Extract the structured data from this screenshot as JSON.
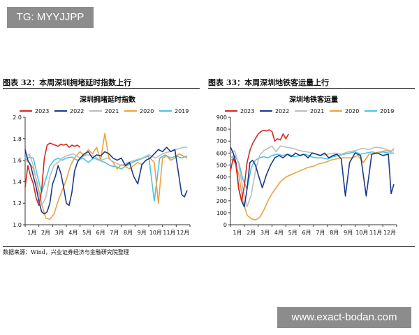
{
  "watermarks": {
    "top": "TG: MYYJJPP",
    "bottom": "www.exact-bodan.com"
  },
  "figures": [
    {
      "title": "图表 32：本周深圳拥堵延时指数上行"
    },
    {
      "title": "图表 33：本周深圳地铁客运量上行"
    }
  ],
  "source": "数据来源：Wind，兴业证券经济与金融研究院整理",
  "colors": {
    "2023": "#d6271f",
    "2022": "#1a3a8a",
    "2021": "#bdbdbd",
    "2020": "#f0a040",
    "2019": "#4cc3e6"
  },
  "chart_data": [
    {
      "type": "line",
      "title": "深圳拥堵延时指数",
      "x_categories": [
        "1月",
        "2月",
        "3月",
        "4月",
        "5月",
        "6月",
        "7月",
        "8月",
        "9月",
        "10月",
        "11月",
        "12月"
      ],
      "ylim": [
        1.0,
        2.0
      ],
      "yticks": [
        "1.0",
        "1.2",
        "1.4",
        "1.6",
        "1.8",
        "2.0"
      ],
      "grid": false,
      "legend_position": "top",
      "series": [
        {
          "name": "2023",
          "color": "#d6271f",
          "x": [
            0.0,
            0.2,
            0.4,
            0.6,
            0.8,
            1.0,
            1.2,
            1.4,
            1.6,
            1.8,
            2.0,
            2.2,
            2.4,
            2.6,
            2.8,
            3.0,
            3.2,
            3.4,
            3.6,
            3.8,
            4.0
          ],
          "y": [
            1.35,
            1.55,
            1.45,
            1.38,
            1.25,
            1.18,
            1.32,
            1.62,
            1.74,
            1.76,
            1.75,
            1.74,
            1.73,
            1.75,
            1.74,
            1.75,
            1.72,
            1.74,
            1.73,
            1.74,
            1.72
          ]
        },
        {
          "name": "2022",
          "color": "#1a3a8a",
          "x": [
            0.0,
            0.2,
            0.4,
            0.6,
            0.8,
            1.0,
            1.2,
            1.4,
            1.6,
            1.8,
            2.0,
            2.2,
            2.4,
            2.6,
            2.8,
            3.0,
            3.2,
            3.4,
            3.6,
            3.8,
            4.0,
            4.3,
            4.6,
            4.9,
            5.2,
            5.5,
            5.8,
            6.1,
            6.4,
            6.7,
            7.0,
            7.3,
            7.6,
            7.9,
            8.2,
            8.5,
            8.8,
            9.1,
            9.4,
            9.7,
            10.0,
            10.3,
            10.6,
            10.9,
            11.2,
            11.4,
            11.6,
            11.8
          ],
          "y": [
            1.7,
            1.6,
            1.55,
            1.45,
            1.35,
            1.22,
            1.12,
            1.1,
            1.12,
            1.2,
            1.38,
            1.45,
            1.55,
            1.48,
            1.35,
            1.2,
            1.18,
            1.3,
            1.5,
            1.58,
            1.62,
            1.66,
            1.68,
            1.62,
            1.65,
            1.64,
            1.68,
            1.66,
            1.62,
            1.6,
            1.62,
            1.55,
            1.58,
            1.45,
            1.38,
            1.56,
            1.6,
            1.62,
            1.66,
            1.7,
            1.68,
            1.72,
            1.68,
            1.7,
            1.45,
            1.28,
            1.26,
            1.32
          ]
        },
        {
          "name": "2021",
          "color": "#bdbdbd",
          "x": [
            0.0,
            0.3,
            0.6,
            0.9,
            1.2,
            1.5,
            1.8,
            2.1,
            2.4,
            2.7,
            3.0,
            3.5,
            4.0,
            4.5,
            5.0,
            5.5,
            6.0,
            6.5,
            7.0,
            7.5,
            8.0,
            8.5,
            9.0,
            9.5,
            10.0,
            10.5,
            11.0,
            11.5,
            11.8
          ],
          "y": [
            1.62,
            1.66,
            1.55,
            1.35,
            1.18,
            1.25,
            1.45,
            1.55,
            1.58,
            1.62,
            1.64,
            1.66,
            1.62,
            1.65,
            1.64,
            1.6,
            1.62,
            1.58,
            1.55,
            1.58,
            1.6,
            1.62,
            1.65,
            1.62,
            1.66,
            1.68,
            1.7,
            1.72,
            1.72
          ]
        },
        {
          "name": "2020",
          "color": "#f0a040",
          "x": [
            0.0,
            0.3,
            0.6,
            0.9,
            1.2,
            1.5,
            1.8,
            2.1,
            2.4,
            2.7,
            3.0,
            3.3,
            3.6,
            4.0,
            4.3,
            4.6,
            4.9,
            5.2,
            5.5,
            5.8,
            6.1,
            6.4,
            6.7,
            7.0,
            7.3,
            7.6,
            7.9,
            8.2,
            8.5,
            8.8,
            9.1,
            9.4,
            9.7,
            10.0,
            10.3,
            10.6,
            10.9,
            11.2,
            11.5,
            11.8
          ],
          "y": [
            1.6,
            1.58,
            1.52,
            1.38,
            1.2,
            1.06,
            1.05,
            1.1,
            1.22,
            1.32,
            1.42,
            1.55,
            1.62,
            1.68,
            1.64,
            1.7,
            1.66,
            1.72,
            1.6,
            1.85,
            1.62,
            1.58,
            1.52,
            1.56,
            1.54,
            1.52,
            1.55,
            1.58,
            1.56,
            1.6,
            1.62,
            1.58,
            1.2,
            1.62,
            1.64,
            1.6,
            1.62,
            1.66,
            1.64,
            1.62
          ]
        },
        {
          "name": "2019",
          "color": "#4cc3e6",
          "x": [
            0.0,
            0.3,
            0.6,
            0.9,
            1.2,
            1.5,
            1.8,
            2.1,
            2.4,
            2.7,
            3.0,
            3.4,
            3.8,
            4.2,
            4.6,
            5.0,
            5.4,
            5.8,
            6.2,
            6.6,
            7.0,
            7.4,
            7.8,
            8.2,
            8.6,
            9.0,
            9.4,
            9.8,
            10.2,
            10.6,
            11.0,
            11.4,
            11.8
          ],
          "y": [
            1.6,
            1.63,
            1.62,
            1.45,
            1.3,
            1.42,
            1.55,
            1.6,
            1.62,
            1.6,
            1.62,
            1.63,
            1.6,
            1.62,
            1.58,
            1.62,
            1.6,
            1.58,
            1.55,
            1.54,
            1.52,
            1.55,
            1.58,
            1.6,
            1.62,
            1.64,
            1.22,
            1.62,
            1.65,
            1.62,
            1.64,
            1.62,
            1.64
          ]
        }
      ]
    },
    {
      "type": "line",
      "title": "深圳地铁客运量",
      "x_categories": [
        "1月",
        "2月",
        "3月",
        "4月",
        "5月",
        "6月",
        "7月",
        "8月",
        "9月",
        "10月",
        "11月",
        "12月"
      ],
      "ylim": [
        0,
        900
      ],
      "yticks": [
        "0",
        "100",
        "200",
        "300",
        "400",
        "500",
        "600",
        "700",
        "800",
        "900"
      ],
      "grid": false,
      "legend_position": "top",
      "series": [
        {
          "name": "2023",
          "color": "#d6271f",
          "x": [
            0.0,
            0.2,
            0.4,
            0.6,
            0.8,
            1.0,
            1.2,
            1.4,
            1.6,
            1.8,
            2.0,
            2.2,
            2.4,
            2.6,
            2.8,
            3.0,
            3.2,
            3.4,
            3.6,
            3.8,
            4.0,
            4.2
          ],
          "y": [
            450,
            560,
            500,
            300,
            200,
            320,
            520,
            620,
            680,
            720,
            760,
            780,
            790,
            785,
            795,
            780,
            700,
            720,
            710,
            760,
            720,
            760
          ]
        },
        {
          "name": "2022",
          "color": "#1a3a8a",
          "x": [
            0.0,
            0.2,
            0.4,
            0.6,
            0.8,
            1.0,
            1.2,
            1.4,
            1.6,
            1.8,
            2.0,
            2.3,
            2.6,
            2.9,
            3.2,
            3.5,
            3.8,
            4.1,
            4.4,
            4.7,
            5.0,
            5.3,
            5.6,
            5.9,
            6.2,
            6.5,
            6.8,
            7.1,
            7.4,
            7.7,
            8.0,
            8.3,
            8.6,
            9.0,
            9.4,
            9.8,
            10.2,
            10.6,
            11.0,
            11.4,
            11.6,
            11.8
          ],
          "y": [
            650,
            600,
            520,
            300,
            200,
            150,
            300,
            520,
            540,
            500,
            420,
            310,
            420,
            500,
            560,
            580,
            560,
            590,
            570,
            600,
            580,
            590,
            560,
            600,
            590,
            580,
            600,
            560,
            580,
            590,
            550,
            240,
            520,
            600,
            580,
            240,
            590,
            600,
            580,
            590,
            260,
            340
          ]
        },
        {
          "name": "2021",
          "color": "#bdbdbd",
          "x": [
            0.0,
            0.3,
            0.6,
            0.9,
            1.2,
            1.5,
            1.8,
            2.1,
            2.4,
            2.7,
            3.0,
            3.3,
            3.6,
            4.0,
            4.5,
            5.0,
            5.5,
            6.0,
            6.5,
            7.0,
            7.5,
            8.0,
            8.5,
            9.0,
            9.5,
            10.0,
            10.5,
            11.0,
            11.5,
            11.8
          ],
          "y": [
            600,
            620,
            500,
            300,
            150,
            250,
            450,
            580,
            620,
            640,
            660,
            610,
            660,
            650,
            640,
            620,
            610,
            600,
            580,
            590,
            600,
            590,
            610,
            620,
            640,
            630,
            650,
            640,
            620,
            620
          ]
        },
        {
          "name": "2020",
          "color": "#f0a040",
          "x": [
            0.0,
            0.3,
            0.6,
            0.9,
            1.2,
            1.5,
            1.8,
            2.1,
            2.4,
            2.7,
            3.0,
            3.3,
            3.6,
            4.0,
            4.4,
            4.8,
            5.2,
            5.6,
            6.0,
            6.4,
            6.8,
            7.2,
            7.6,
            8.0,
            8.4,
            8.8,
            9.2,
            9.6,
            10.0,
            10.4,
            10.8,
            11.2,
            11.6,
            11.8
          ],
          "y": [
            550,
            530,
            420,
            200,
            80,
            50,
            40,
            60,
            120,
            200,
            260,
            310,
            360,
            400,
            420,
            440,
            460,
            480,
            490,
            510,
            520,
            540,
            550,
            560,
            560,
            560,
            580,
            520,
            590,
            600,
            610,
            620,
            610,
            640
          ]
        },
        {
          "name": "2019",
          "color": "#4cc3e6",
          "x": [
            0.0,
            0.3,
            0.6,
            0.9,
            1.2,
            1.5,
            1.8,
            2.1,
            2.4,
            2.7,
            3.0,
            3.4,
            3.8,
            4.2,
            4.6,
            5.0,
            5.4,
            5.8,
            6.2,
            6.6,
            7.0,
            7.4,
            7.8,
            8.2,
            8.6,
            9.0,
            9.4,
            9.8,
            10.2,
            10.6,
            11.0,
            11.4,
            11.8
          ],
          "y": [
            560,
            580,
            520,
            380,
            300,
            480,
            540,
            560,
            570,
            560,
            580,
            590,
            580,
            590,
            570,
            580,
            590,
            570,
            560,
            560,
            550,
            570,
            580,
            590,
            600,
            610,
            590,
            600,
            610,
            600,
            610,
            600,
            600
          ]
        }
      ]
    }
  ]
}
